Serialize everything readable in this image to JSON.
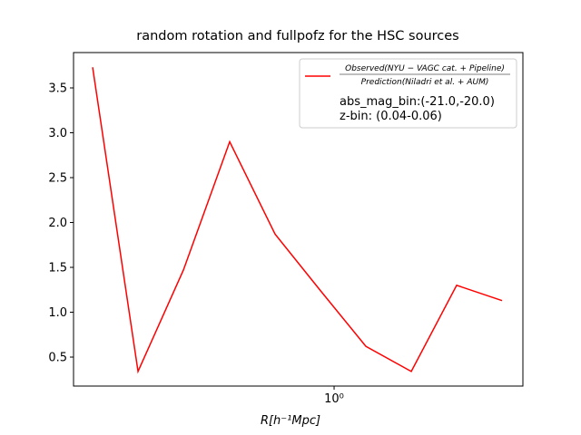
{
  "chart_data": {
    "type": "line",
    "title": "random rotation and fullpofz for the HSC sources",
    "xlabel": "R[h⁻¹Mpc]",
    "x": [
      0.0863,
      0.1368,
      0.2168,
      0.3467,
      0.5495,
      0.871,
      1.38,
      2.188,
      3.467,
      5.495
    ],
    "series": [
      {
        "name": "Observed(NYU − VAGC cat. + Pipeline)",
        "name_denominator": "Prediction(Niladri et al. + AUM)",
        "color": "#ff0000",
        "values": [
          3.73,
          0.34,
          1.47,
          2.9,
          1.87,
          1.24,
          0.62,
          0.34,
          1.3,
          1.13
        ]
      }
    ],
    "annotations": [
      "abs_mag_bin:(-21.0,-20.0)",
      "z-bin: (0.04-0.06)"
    ],
    "xscale": "log",
    "xlim": [
      0.0711,
      6.79
    ],
    "xticks": [
      {
        "value": 1,
        "label": "10⁰"
      }
    ],
    "ylim": [
      0.177,
      3.894
    ],
    "yticks": [
      0.5,
      1.0,
      1.5,
      2.0,
      2.5,
      3.0,
      3.5
    ],
    "legend": "upper right"
  }
}
